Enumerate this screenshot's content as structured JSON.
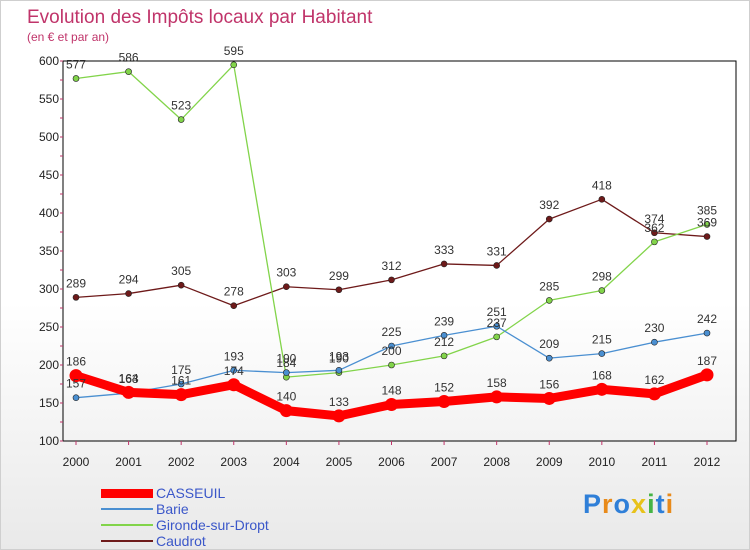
{
  "chart_data": {
    "type": "line",
    "title": "Evolution des Impôts locaux par Habitant",
    "subtitle": "(en € et par an)",
    "x": [
      "2000",
      "2001",
      "2002",
      "2003",
      "2004",
      "2005",
      "2006",
      "2007",
      "2008",
      "2009",
      "2010",
      "2011",
      "2012"
    ],
    "y_ticks": [
      "100",
      "150",
      "200",
      "250",
      "300",
      "350",
      "400",
      "450",
      "500",
      "550",
      "600"
    ],
    "ylim": [
      100,
      600
    ],
    "series": [
      {
        "name": "CASSEUIL",
        "color": "#ff0000",
        "values": [
          186,
          164,
          161,
          174,
          140,
          133,
          148,
          152,
          158,
          156,
          168,
          162,
          187
        ],
        "labels": [
          "186",
          "164",
          "161",
          "174",
          "140",
          "133",
          "148",
          "152",
          "158",
          "156",
          "168",
          "162",
          "187"
        ]
      },
      {
        "name": "Barie",
        "color": "#4a8fd1",
        "values": [
          157,
          163,
          175,
          193,
          190,
          193,
          225,
          239,
          251,
          209,
          215,
          230,
          242
        ],
        "labels": [
          "157",
          "163",
          "175",
          "193",
          "190",
          "193",
          "225",
          "239",
          "251",
          "209",
          "215",
          "230",
          "242"
        ]
      },
      {
        "name": "Gironde-sur-Dropt",
        "color": "#82d44a",
        "values": [
          577,
          586,
          523,
          595,
          184,
          190,
          200,
          212,
          237,
          285,
          298,
          362,
          385
        ],
        "labels": [
          "577",
          "586",
          "523",
          "595",
          "184",
          "190",
          "200",
          "212",
          "237",
          "285",
          "298",
          "362",
          "385"
        ]
      },
      {
        "name": "Caudrot",
        "color": "#6e1a1a",
        "values": [
          289,
          294,
          305,
          278,
          303,
          299,
          312,
          333,
          331,
          392,
          418,
          374,
          369
        ],
        "labels": [
          "289",
          "294",
          "305",
          "278",
          "303",
          "299",
          "312",
          "333",
          "331",
          "392",
          "418",
          "374",
          "369"
        ]
      }
    ]
  },
  "legend": [
    {
      "label": "CASSEUIL",
      "color": "#ff0000"
    },
    {
      "label": "Barie",
      "color": "#4a8fd1"
    },
    {
      "label": "Gironde-sur-Dropt",
      "color": "#82d44a"
    },
    {
      "label": "Caudrot",
      "color": "#6e1a1a"
    }
  ],
  "logo": {
    "letters": [
      "P",
      "r",
      "o",
      "x",
      "i",
      "t",
      "i"
    ],
    "colors": [
      "#2f7fd8",
      "#e88a1a",
      "#2f7fd8",
      "#e8c21a",
      "#45b445",
      "#2f7fd8",
      "#e88a1a"
    ]
  }
}
